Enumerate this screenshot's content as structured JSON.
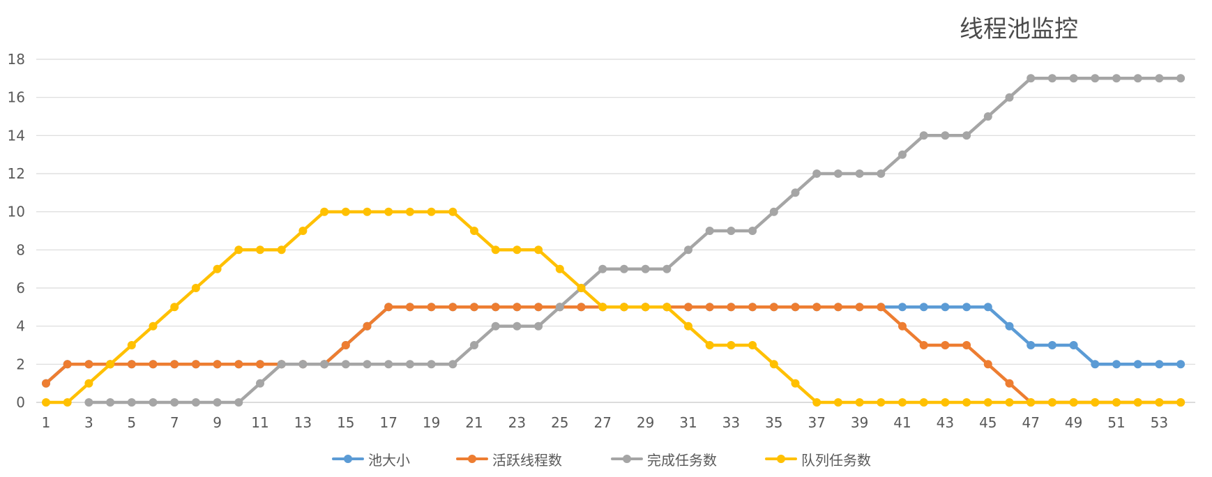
{
  "chart_data": {
    "type": "line",
    "title": "线程池监控",
    "xlabel": "",
    "ylabel": "",
    "x": [
      1,
      2,
      3,
      4,
      5,
      6,
      7,
      8,
      9,
      10,
      11,
      12,
      13,
      14,
      15,
      16,
      17,
      18,
      19,
      20,
      21,
      22,
      23,
      24,
      25,
      26,
      27,
      28,
      29,
      30,
      31,
      32,
      33,
      34,
      35,
      36,
      37,
      38,
      39,
      40,
      41,
      42,
      43,
      44,
      45,
      46,
      47,
      48,
      49,
      50,
      51,
      52,
      53,
      54
    ],
    "x_tick_labels": [
      "1",
      "3",
      "5",
      "7",
      "9",
      "11",
      "13",
      "15",
      "17",
      "19",
      "21",
      "23",
      "25",
      "27",
      "29",
      "31",
      "33",
      "35",
      "37",
      "39",
      "41",
      "43",
      "45",
      "47",
      "49",
      "51",
      "53"
    ],
    "ylim": [
      0,
      18
    ],
    "y_ticks": [
      0,
      2,
      4,
      6,
      8,
      10,
      12,
      14,
      16,
      18
    ],
    "grid": "horizontal",
    "legend_position": "bottom",
    "series": [
      {
        "name": "池大小",
        "color": "#5b9bd5",
        "values": [
          1,
          2,
          2,
          2,
          2,
          2,
          2,
          2,
          2,
          2,
          2,
          2,
          2,
          2,
          3,
          4,
          5,
          5,
          5,
          5,
          5,
          5,
          5,
          5,
          5,
          5,
          5,
          5,
          5,
          5,
          5,
          5,
          5,
          5,
          5,
          5,
          5,
          5,
          5,
          5,
          5,
          5,
          5,
          5,
          5,
          4,
          3,
          3,
          3,
          2,
          2,
          2,
          2,
          2
        ]
      },
      {
        "name": "活跃线程数",
        "color": "#ed7d31",
        "values": [
          1,
          2,
          2,
          2,
          2,
          2,
          2,
          2,
          2,
          2,
          2,
          2,
          2,
          2,
          3,
          4,
          5,
          5,
          5,
          5,
          5,
          5,
          5,
          5,
          5,
          5,
          5,
          5,
          5,
          5,
          5,
          5,
          5,
          5,
          5,
          5,
          5,
          5,
          5,
          5,
          4,
          3,
          3,
          3,
          2,
          1,
          0,
          0,
          0,
          0,
          0,
          0,
          0,
          0
        ]
      },
      {
        "name": "完成任务数",
        "color": "#a5a5a5",
        "values": [
          null,
          null,
          0,
          0,
          0,
          0,
          0,
          0,
          0,
          0,
          1,
          2,
          2,
          2,
          2,
          2,
          2,
          2,
          2,
          2,
          3,
          4,
          4,
          4,
          5,
          6,
          7,
          7,
          7,
          7,
          8,
          9,
          9,
          9,
          10,
          11,
          12,
          12,
          12,
          12,
          13,
          14,
          14,
          14,
          15,
          16,
          17,
          17,
          17,
          17,
          17,
          17,
          17,
          17
        ]
      },
      {
        "name": "队列任务数",
        "color": "#ffc000",
        "values": [
          0,
          0,
          1,
          2,
          3,
          4,
          5,
          6,
          7,
          8,
          8,
          8,
          9,
          10,
          10,
          10,
          10,
          10,
          10,
          10,
          9,
          8,
          8,
          8,
          7,
          6,
          5,
          5,
          5,
          5,
          4,
          3,
          3,
          3,
          2,
          1,
          0,
          0,
          0,
          0,
          0,
          0,
          0,
          0,
          0,
          0,
          0,
          0,
          0,
          0,
          0,
          0,
          0,
          0
        ]
      }
    ]
  }
}
